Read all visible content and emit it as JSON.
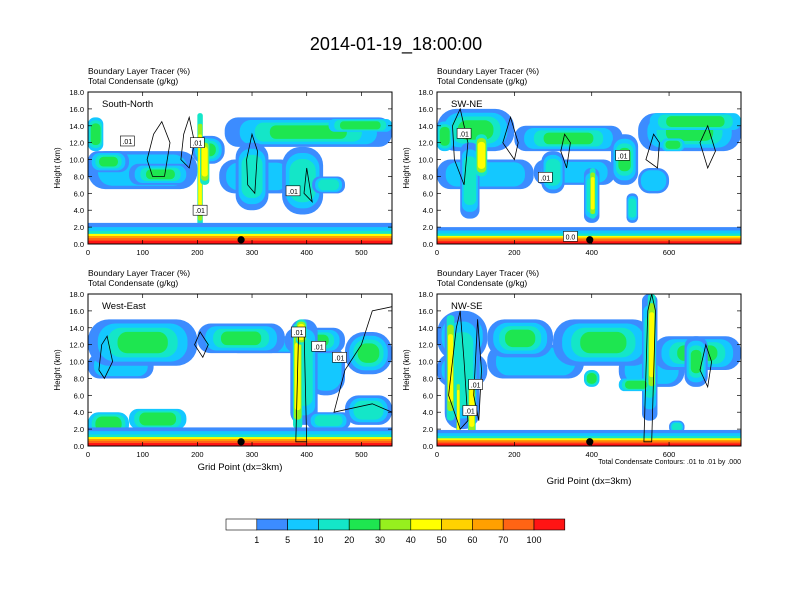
{
  "title": "2014-01-19_18:00:00",
  "colors": {
    "levels": [
      "#ffffff",
      "#3c8cff",
      "#14c8ff",
      "#14e6c8",
      "#1ee650",
      "#96f01e",
      "#ffff00",
      "#ffd200",
      "#ffa000",
      "#ff6414",
      "#ff1414"
    ],
    "contour": "#000000",
    "station_marker": "#000000"
  },
  "colorbar": {
    "labels": [
      "1",
      "5",
      "10",
      "20",
      "30",
      "40",
      "50",
      "60",
      "70",
      "100"
    ]
  },
  "y_axis": {
    "label": "Height (km)",
    "ticks": [
      "0.0",
      "2.0",
      "4.0",
      "6.0",
      "8.0",
      "10.0",
      "12.0",
      "14.0",
      "16.0",
      "18.0"
    ]
  },
  "x_axis_label": "Grid Point (dx=3km)",
  "contour_note": "Total Condensate Contours: .01 to .01 by .000",
  "chart_data": [
    {
      "type": "heatmap",
      "panel": "South-North",
      "subtitle_line1": "Boundary Layer Tracer    (%)",
      "subtitle_line2": "Total Condensate    (g/kg)",
      "xlabel": "",
      "ylabel": "Height (km)",
      "xlim": [
        0,
        556
      ],
      "ylim": [
        0,
        18
      ],
      "xticks": [
        0,
        100,
        200,
        300,
        400,
        500
      ],
      "yticks": [
        0,
        2,
        4,
        6,
        8,
        10,
        12,
        14,
        16,
        18
      ],
      "contour_labels": [
        ".01",
        ".01",
        ".01",
        ".01"
      ],
      "station_x": 280
    },
    {
      "type": "heatmap",
      "panel": "SW-NE",
      "subtitle_line1": "Boundary Layer Tracer    (%)",
      "subtitle_line2": "Total Condensate    (g/kg)",
      "xlabel": "",
      "ylabel": "Height (km)",
      "xlim": [
        0,
        786
      ],
      "ylim": [
        0,
        18
      ],
      "xticks": [
        0,
        200,
        400,
        600
      ],
      "yticks": [
        0,
        2,
        4,
        6,
        8,
        10,
        12,
        14,
        16,
        18
      ],
      "contour_labels": [
        ".01",
        ".01",
        ".01",
        "0.0"
      ],
      "station_x": 395
    },
    {
      "type": "heatmap",
      "panel": "West-East",
      "subtitle_line1": "Boundary Layer Tracer    (%)",
      "subtitle_line2": "Total Condensate    (g/kg)",
      "xlabel": "Grid Point (dx=3km)",
      "ylabel": "Height (km)",
      "xlim": [
        0,
        556
      ],
      "ylim": [
        0,
        18
      ],
      "xticks": [
        0,
        100,
        200,
        300,
        400,
        500
      ],
      "yticks": [
        0,
        2,
        4,
        6,
        8,
        10,
        12,
        14,
        16,
        18
      ],
      "contour_labels": [
        ".01",
        ".01",
        ".01"
      ],
      "station_x": 280
    },
    {
      "type": "heatmap",
      "panel": "NW-SE",
      "subtitle_line1": "Boundary Layer Tracer    (%)",
      "subtitle_line2": "Total Condensate    (g/kg)",
      "xlabel": "Grid Point (dx=3km)",
      "ylabel": "Height (km)",
      "xlim": [
        0,
        786
      ],
      "ylim": [
        0,
        18
      ],
      "xticks": [
        0,
        200,
        400,
        600
      ],
      "yticks": [
        0,
        2,
        4,
        6,
        8,
        10,
        12,
        14,
        16,
        18
      ],
      "contour_labels": [
        ".01",
        ".01"
      ],
      "station_x": 395
    }
  ]
}
